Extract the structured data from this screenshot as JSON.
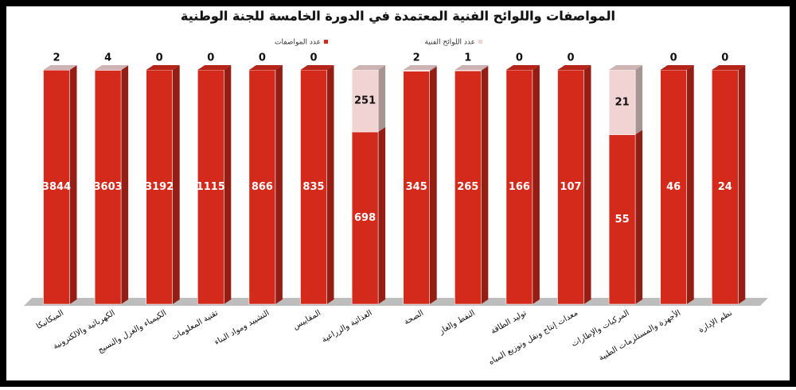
{
  "chart_data": {
    "type": "bar",
    "stacking": "percent",
    "legend": "top",
    "title": "المواصفات واللوائح الفنية المعتمدة في الدورة الخامسة للجنة الوطنية",
    "categories": [
      "الميكانيكا",
      "الكهربائية والالكترونية",
      "الكيمياء والغزل والنسيج",
      "تقنية المعلومات",
      "التشييد ومواد البناء",
      "المقاييس",
      "الغذائية والزراعية",
      "الصحة",
      "النفط والغاز",
      "توليد الطاقة",
      "معدات إنتاج ونقل وتوزيع المياه",
      "المركبات والإطارات",
      "الأجهزة والمستلزمات الطبية",
      "نظم الإدارة"
    ],
    "series": [
      {
        "name": "عدد المواصفات",
        "color": "#d42a1c",
        "values": [
          3844,
          3603,
          3192,
          1115,
          866,
          835,
          698,
          345,
          265,
          166,
          107,
          55,
          46,
          24
        ]
      },
      {
        "name": "عدد اللوائح الفنية",
        "color": "#f1d3d3",
        "values": [
          2,
          4,
          0,
          0,
          0,
          0,
          251,
          2,
          1,
          0,
          0,
          21,
          0,
          0
        ]
      }
    ]
  }
}
